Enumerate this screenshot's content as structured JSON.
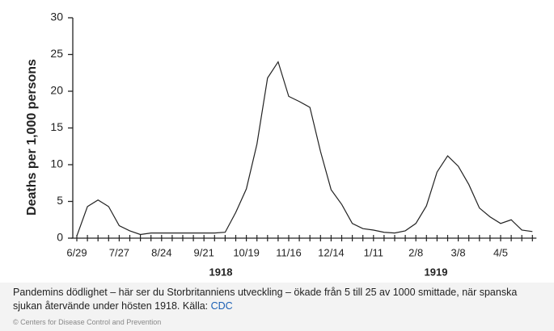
{
  "chart_data": {
    "type": "line",
    "y_label": "Deaths per 1,000 persons",
    "categories": [
      "6/29",
      null,
      null,
      null,
      "7/27",
      null,
      null,
      null,
      "8/24",
      null,
      null,
      null,
      "9/21",
      null,
      null,
      null,
      "10/19",
      null,
      null,
      null,
      "11/16",
      null,
      null,
      null,
      "12/14",
      null,
      null,
      null,
      "1/11",
      null,
      null,
      null,
      "2/8",
      null,
      null,
      null,
      "3/8",
      null,
      null,
      null,
      "4/5",
      null,
      null,
      null
    ],
    "values": [
      0.3,
      4.3,
      5.2,
      4.3,
      1.7,
      1.0,
      0.5,
      0.7,
      0.7,
      0.7,
      0.7,
      0.7,
      0.7,
      0.7,
      0.8,
      3.5,
      6.7,
      12.8,
      21.8,
      24.0,
      19.3,
      18.6,
      17.8,
      11.8,
      6.6,
      4.6,
      2.0,
      1.3,
      1.1,
      0.8,
      0.7,
      1.0,
      2.0,
      4.4,
      9.0,
      11.2,
      9.8,
      7.3,
      4.1,
      2.9,
      2.0,
      2.5,
      1.1,
      0.9
    ],
    "color": "#222222",
    "year_labels": [
      "1918",
      "1919"
    ],
    "ylim": [
      0,
      30
    ],
    "yticks": [
      0,
      5,
      10,
      15,
      20,
      25,
      30
    ],
    "grid": false
  },
  "caption": {
    "text": "Pandemins dödlighet – här ser du Storbritanniens utveckling – ökade från 5 till 25 av 1000 smittade, när spanska sjukan återvände under hösten 1918. Källa: ",
    "link": "CDC"
  },
  "credit": "© Centers for Disease Control and Prevention"
}
